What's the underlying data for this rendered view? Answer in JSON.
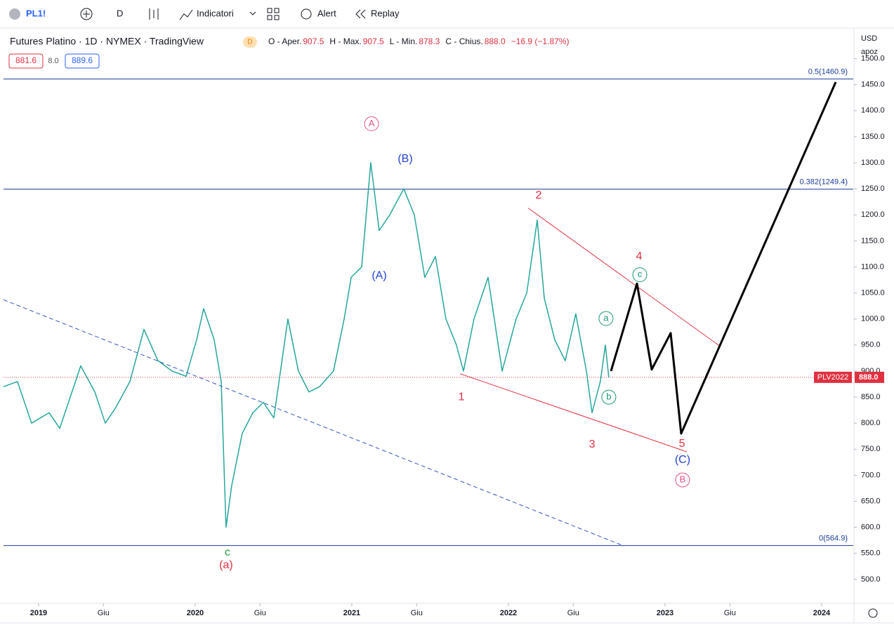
{
  "toolbar": {
    "symbol": "PL1!",
    "interval": "D",
    "indicators": "Indicatori",
    "alert": "Alert",
    "replay": "Replay"
  },
  "legend": {
    "title": "Futures Platino · 1D · NYMEX · TradingView",
    "badge": "D",
    "ohlc": [
      {
        "label": "O - Aper.",
        "value": "907.5"
      },
      {
        "label": "H - Max.",
        "value": "907.5"
      },
      {
        "label": "L - Min.",
        "value": "878.3"
      },
      {
        "label": "C - Chius.",
        "value": "888.0"
      }
    ],
    "change": "−16.9 (−1.87%)",
    "bid": "881.6",
    "spread": "8.0",
    "ask": "889.6"
  },
  "axis_header": {
    "currency": "USD",
    "unit": "apoz"
  },
  "chart_data": {
    "type": "line",
    "xlim": [
      2018.776,
      2024.202
    ],
    "ylim": [
      454,
      1552
    ],
    "xticks": [
      2019,
      {
        "value": 2019.414,
        "label": "Giu"
      },
      2020,
      {
        "value": 2020.414,
        "label": "Giu"
      },
      2021,
      {
        "value": 2021.414,
        "label": "Giu"
      },
      2022,
      {
        "value": 2022.414,
        "label": "Giu"
      },
      2023,
      {
        "value": 2023.414,
        "label": "Giu"
      },
      2024
    ],
    "yticks": [
      {
        "value": 500,
        "label": "500.0"
      },
      {
        "value": 550,
        "label": "550.0"
      },
      {
        "value": 600,
        "label": "600.0"
      },
      {
        "value": 650,
        "label": "650.0"
      },
      {
        "value": 700,
        "label": "700.0"
      },
      {
        "value": 750,
        "label": "750.0"
      },
      {
        "value": 800,
        "label": "800.0"
      },
      {
        "value": 850,
        "label": "850.0"
      },
      {
        "value": 900,
        "label": "900.0"
      },
      {
        "value": 950,
        "label": "950.0"
      },
      {
        "value": 1000,
        "label": "1000.0"
      },
      {
        "value": 1050,
        "label": "1050.0"
      },
      {
        "value": 1100,
        "label": "1100.0"
      },
      {
        "value": 1150,
        "label": "1150.0"
      },
      {
        "value": 1200,
        "label": "1200.0"
      },
      {
        "value": 1250,
        "label": "1250.0"
      },
      {
        "value": 1300,
        "label": "1300.0"
      },
      {
        "value": 1350,
        "label": "1350.0"
      },
      {
        "value": 1400,
        "label": "1400.0"
      },
      {
        "value": 1450,
        "label": "1450.0"
      },
      {
        "value": 1500,
        "label": "1500.0"
      }
    ],
    "series": [
      {
        "color": "#26a69a",
        "x": [
          2018.776,
          2018.865,
          2018.955,
          2019.067,
          2019.135,
          2019.269,
          2019.359,
          2019.426,
          2019.493,
          2019.583,
          2019.673,
          2019.762,
          2019.852,
          2019.942,
          2020.009,
          2020.054,
          2020.121,
          2020.166,
          2020.197,
          2020.233,
          2020.3,
          2020.368,
          2020.435,
          2020.502,
          2020.592,
          2020.659,
          2020.726,
          2020.794,
          2020.883,
          2020.951,
          2020.996,
          2021.063,
          2021.121,
          2021.175,
          2021.242,
          2021.332,
          2021.399,
          2021.466,
          2021.534,
          2021.601,
          2021.668,
          2021.713,
          2021.78,
          2021.87,
          2021.96,
          2022.049,
          2022.117,
          2022.184,
          2022.229,
          2022.296,
          2022.363,
          2022.43,
          2022.498,
          2022.534,
          2022.587,
          2022.619,
          2022.641
        ],
        "values": [
          870,
          880,
          800,
          820,
          790,
          910,
          860,
          800,
          830,
          880,
          980,
          920,
          900,
          890,
          960,
          1020,
          960,
          880,
          600,
          680,
          780,
          820,
          840,
          810,
          1000,
          900,
          860,
          870,
          900,
          1000,
          1080,
          1100,
          1300,
          1170,
          1200,
          1250,
          1200,
          1080,
          1120,
          1000,
          950,
          900,
          1000,
          1080,
          900,
          1000,
          1050,
          1190,
          1040,
          960,
          920,
          1010,
          900,
          820,
          880,
          950,
          888
        ]
      },
      {
        "color": "#000000",
        "x": [
          2022.655,
          2022.821,
          2022.915,
          2023.036,
          2023.103,
          2024.09
        ],
        "values": [
          900,
          1068,
          903,
          973,
          780,
          1455
        ]
      }
    ],
    "trendlines": [
      {
        "color": "#e03040",
        "dashed": false,
        "x": [
          2022.126,
          2023.35
        ],
        "values": [
          1213,
          948
        ]
      },
      {
        "color": "#e03040",
        "dashed": false,
        "x": [
          2021.691,
          2023.139
        ],
        "values": [
          895,
          745
        ]
      },
      {
        "color": "#3355bb",
        "dashed": true,
        "x": [
          2018.776,
          2022.731
        ],
        "values": [
          1037,
          565
        ]
      }
    ],
    "fib_levels": [
      {
        "value": 1460.9,
        "label": "0.5(1460.9)"
      },
      {
        "value": 1249.4,
        "label": "0.382(1249.4)"
      },
      {
        "value": 564.9,
        "label": "0(564.9)"
      }
    ],
    "fib_color": "#1a3a9a",
    "last_price": {
      "value": 888.0,
      "label": "888.0",
      "tag": "PLV2022",
      "color": "#e03040"
    },
    "wave_labels": [
      {
        "label": "A",
        "x": 2021.126,
        "value": 1375,
        "color": "#e05080",
        "circled": true
      },
      {
        "label": "(B)",
        "x": 2021.341,
        "value": 1307,
        "color": "#2244cc",
        "circled": false
      },
      {
        "label": "(A)",
        "x": 2021.175,
        "value": 1083,
        "color": "#2244cc",
        "circled": false
      },
      {
        "label": "2",
        "x": 2022.193,
        "value": 1237,
        "color": "#e03040",
        "circled": false
      },
      {
        "label": "4",
        "x": 2022.834,
        "value": 1120,
        "color": "#e03040",
        "circled": false
      },
      {
        "label": "c",
        "x": 2022.839,
        "value": 1085,
        "color": "#16967a",
        "circled": true
      },
      {
        "label": "a",
        "x": 2022.623,
        "value": 1001,
        "color": "#16967a",
        "circled": true
      },
      {
        "label": "b",
        "x": 2022.641,
        "value": 850,
        "color": "#16967a",
        "circled": true
      },
      {
        "label": "1",
        "x": 2021.7,
        "value": 850,
        "color": "#e03040",
        "circled": false
      },
      {
        "label": "3",
        "x": 2022.534,
        "value": 759,
        "color": "#e03040",
        "circled": false
      },
      {
        "label": "5",
        "x": 2023.108,
        "value": 760,
        "color": "#e03040",
        "circled": false
      },
      {
        "label": "(C)",
        "x": 2023.112,
        "value": 729,
        "color": "#2244cc",
        "circled": false
      },
      {
        "label": "B",
        "x": 2023.112,
        "value": 691,
        "color": "#e05080",
        "circled": true
      },
      {
        "label": "c",
        "x": 2020.206,
        "value": 551,
        "color": "#22a040",
        "circled": false
      },
      {
        "label": "(a)",
        "x": 2020.197,
        "value": 527,
        "color": "#e03040",
        "circled": false
      }
    ]
  }
}
